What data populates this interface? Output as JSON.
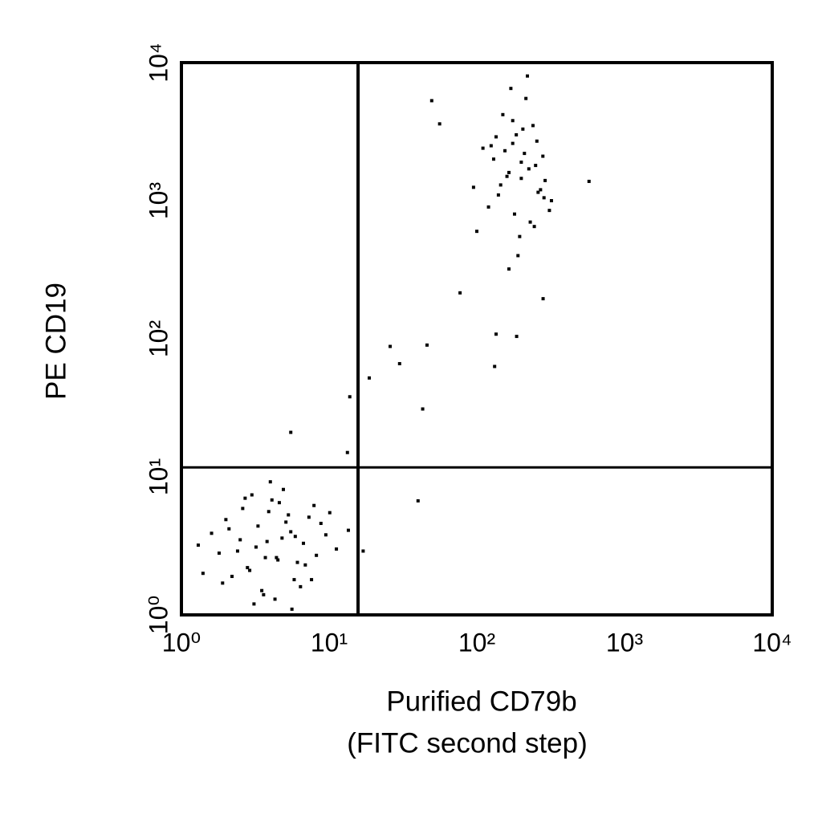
{
  "chart_data": {
    "type": "scatter",
    "xlabel": [
      "Purified CD79b",
      "(FITC second step)"
    ],
    "ylabel": "PE CD19",
    "xscale": "log",
    "yscale": "log",
    "xlim": [
      1,
      10000
    ],
    "ylim": [
      1,
      10000
    ],
    "xticks": [
      {
        "value": 1,
        "label": "10⁰"
      },
      {
        "value": 10,
        "label": "10¹"
      },
      {
        "value": 100,
        "label": "10²"
      },
      {
        "value": 1000,
        "label": "10³"
      },
      {
        "value": 10000,
        "label": "10⁴"
      }
    ],
    "yticks": [
      {
        "value": 1,
        "label": "10⁰"
      },
      {
        "value": 10,
        "label": "10¹"
      },
      {
        "value": 100,
        "label": "10²"
      },
      {
        "value": 1000,
        "label": "10³"
      },
      {
        "value": 10000,
        "label": "10⁴"
      }
    ],
    "gates": {
      "x": 15.7,
      "y": 11.7
    },
    "color": "#000000",
    "x": [
      3.2,
      4.5,
      2.1,
      5.8,
      3.9,
      6.7,
      2.8,
      4.1,
      1.6,
      8.2,
      3.5,
      5.1,
      2.4,
      7.3,
      4.8,
      1.9,
      3.0,
      6.1,
      9.5,
      2.6,
      4.3,
      5.5,
      3.7,
      1.3,
      7.9,
      2.2,
      4.9,
      3.3,
      6.4,
      11.2,
      2.9,
      5.3,
      1.8,
      4.0,
      8.8,
      3.6,
      2.5,
      6.9,
      4.6,
      1.4,
      13.5,
      3.1,
      5.9,
      2.0,
      7.6,
      4.4,
      3.8,
      10.1,
      2.7,
      5.6,
      160,
      210,
      140,
      250,
      185,
      120,
      290,
      175,
      230,
      200,
      150,
      270,
      110,
      195,
      240,
      165,
      320,
      130,
      215,
      180,
      255,
      145,
      205,
      100,
      280,
      170,
      225,
      190,
      135,
      260,
      155,
      310,
      220,
      95,
      175,
      245,
      200,
      125,
      285,
      165,
      575,
      49.5,
      56,
      25.9,
      30,
      46,
      18.7,
      13.8,
      43,
      135,
      186,
      132,
      5.5,
      13.3,
      40,
      17,
      77,
      281
    ],
    "values": [
      3.1,
      2.5,
      4.2,
      1.8,
      5.6,
      3.3,
      2.2,
      6.8,
      3.9,
      2.7,
      1.5,
      4.7,
      2.9,
      5.1,
      3.6,
      1.7,
      7.4,
      2.4,
      3.8,
      5.9,
      1.3,
      4.0,
      2.6,
      3.2,
      6.2,
      1.9,
      8.1,
      4.4,
      1.6,
      3.0,
      2.1,
      5.3,
      2.8,
      9.2,
      4.6,
      1.4,
      3.5,
      2.3,
      6.5,
      2.0,
      4.1,
      1.2,
      3.7,
      4.9,
      1.8,
      2.6,
      3.4,
      5.5,
      7.0,
      1.1,
      1500,
      2200,
      1100,
      1800,
      3000,
      900,
      1400,
      2600,
      700,
      1900,
      4200,
      1200,
      2400,
      550,
      3500,
      1600,
      1000,
      2000,
      5500,
      800,
      2700,
      1300,
      3300,
      600,
      2100,
      6500,
      1700,
      400,
      2900,
      1150,
      2300,
      850,
      8000,
      1250,
      3800,
      650,
      1450,
      2500,
      1050,
      320,
      1380,
      5300,
      3600,
      88,
      66,
      90,
      52,
      38,
      31,
      108,
      104,
      63,
      21,
      15,
      6.7,
      2.9,
      215,
      195
    ]
  }
}
